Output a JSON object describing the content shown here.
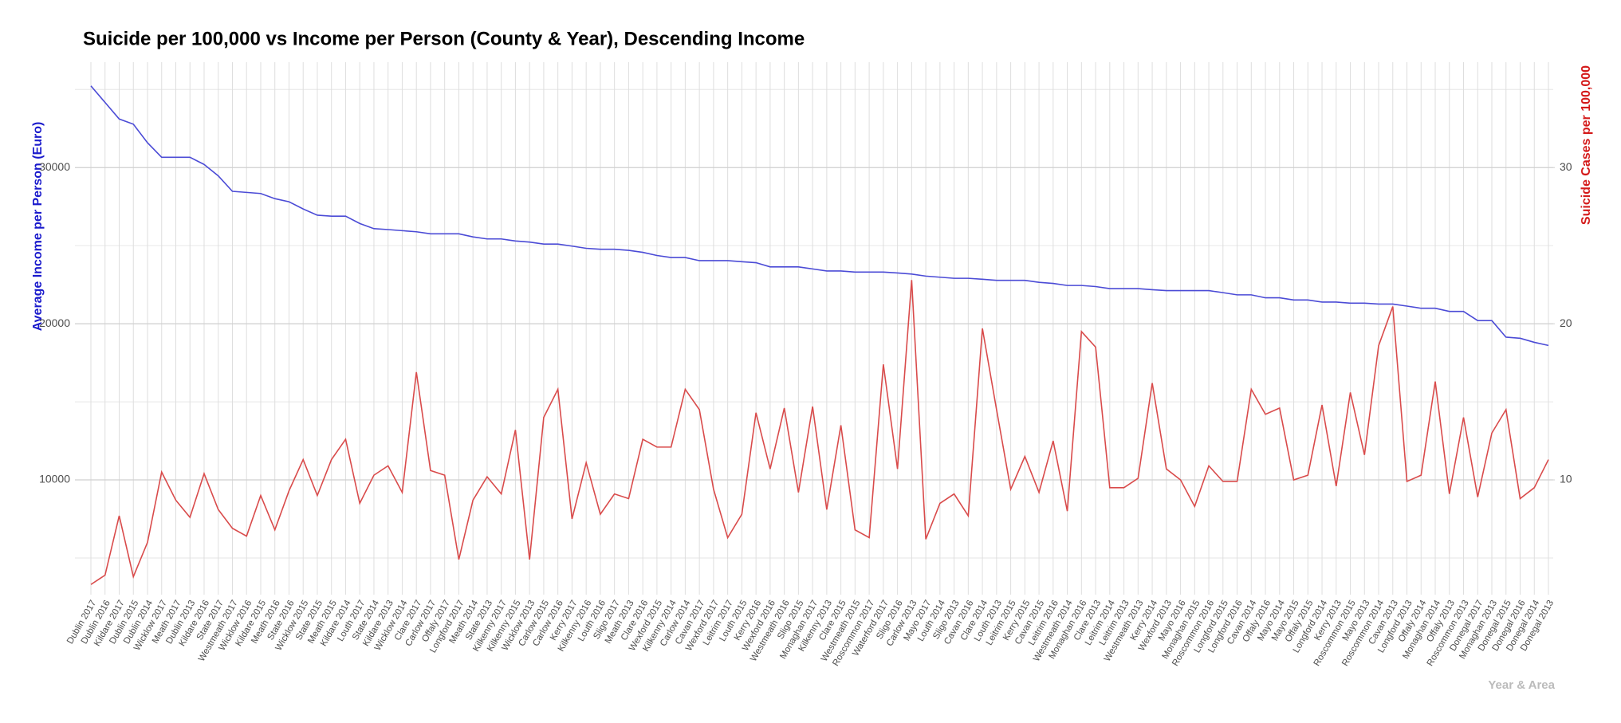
{
  "chart_data": {
    "type": "line",
    "title": "Suicide per 100,000 vs Income per Person (County & Year), Descending Income",
    "ylabel": "Average Income per Person (Euro)",
    "y2label": "Suicide Cases per 100,000",
    "xlabel": "Year & Area",
    "categories": [
      "Dublin 2017",
      "Dublin 2016",
      "Kildare 2017",
      "Dublin 2015",
      "Dublin 2014",
      "Wicklow 2017",
      "Meath 2017",
      "Dublin 2013",
      "Kildare 2016",
      "State 2017",
      "Westmeath 2017",
      "Wicklow 2016",
      "Kildare 2015",
      "Meath 2016",
      "State 2016",
      "Wicklow 2015",
      "State 2015",
      "Meath 2015",
      "Kildare 2014",
      "Louth 2017",
      "State 2014",
      "Kildare 2013",
      "Wicklow 2014",
      "Clare 2017",
      "Carlow 2017",
      "Offaly 2017",
      "Longford 2017",
      "Meath 2014",
      "State 2013",
      "Kilkenny 2017",
      "Kilkenny 2015",
      "Wicklow 2013",
      "Carlow 2015",
      "Carlow 2016",
      "Kerry 2017",
      "Kilkenny 2016",
      "Louth 2016",
      "Sligo 2017",
      "Meath 2013",
      "Clare 2016",
      "Wexford 2015",
      "Kilkenny 2014",
      "Carlow 2014",
      "Cavan 2017",
      "Wexford 2017",
      "Leitrim 2017",
      "Louth 2015",
      "Kerry 2016",
      "Wexford 2016",
      "Westmeath 2016",
      "Sligo 2015",
      "Monaghan 2017",
      "Kilkenny 2013",
      "Clare 2015",
      "Westmeath 2015",
      "Roscommon 2017",
      "Waterford 2017",
      "Sligo 2016",
      "Carlow 2013",
      "Mayo 2017",
      "Louth 2014",
      "Sligo 2013",
      "Cavan 2016",
      "Clare 2014",
      "Louth 2013",
      "Leitrim 2015",
      "Kerry 2015",
      "Cavan 2015",
      "Leitrim 2016",
      "Westmeath 2014",
      "Monaghan 2016",
      "Clare 2013",
      "Leitrim 2014",
      "Leitrim 2013",
      "Westmeath 2013",
      "Kerry 2014",
      "Wexford 2013",
      "Mayo 2016",
      "Monaghan 2015",
      "Roscommon 2016",
      "Longford 2015",
      "Longford 2016",
      "Cavan 2014",
      "Offaly 2016",
      "Mayo 2014",
      "Mayo 2015",
      "Offaly 2015",
      "Longford 2014",
      "Kerry 2013",
      "Roscommon 2015",
      "Mayo 2013",
      "Roscommon 2014",
      "Cavan 2013",
      "Longford 2013",
      "Offaly 2014",
      "Monaghan 2014",
      "Offaly 2013",
      "Roscommon 2013",
      "Donegal 2017",
      "Monaghan 2013",
      "Donegal 2015",
      "Donegal 2016",
      "Donegal 2014",
      "Donegal 2013"
    ],
    "series": [
      {
        "name": "Average Income per Person (Euro)",
        "color": "#4b4bd6",
        "values": [
          35230,
          34170,
          33110,
          32780,
          31590,
          30660,
          30660,
          30660,
          30200,
          29470,
          28480,
          28410,
          28340,
          28010,
          27810,
          27350,
          26950,
          26890,
          26890,
          26420,
          26090,
          26030,
          25960,
          25890,
          25760,
          25760,
          25760,
          25560,
          25430,
          25430,
          25300,
          25230,
          25100,
          25100,
          24970,
          24830,
          24770,
          24770,
          24700,
          24570,
          24370,
          24240,
          24240,
          24040,
          24040,
          24040,
          23970,
          23910,
          23640,
          23640,
          23640,
          23510,
          23380,
          23380,
          23310,
          23310,
          23310,
          23250,
          23180,
          23050,
          22980,
          22910,
          22910,
          22850,
          22780,
          22780,
          22780,
          22650,
          22580,
          22450,
          22450,
          22380,
          22250,
          22250,
          22250,
          22180,
          22120,
          22120,
          22120,
          22120,
          21990,
          21850,
          21850,
          21660,
          21660,
          21520,
          21520,
          21390,
          21390,
          21320,
          21320,
          21260,
          21260,
          21130,
          20990,
          20990,
          20790,
          20790,
          20200,
          20200,
          19140,
          19070,
          18810,
          18610
        ]
      },
      {
        "name": "Suicide Cases per 100,000",
        "color": "#d94b4b",
        "axis": "y2",
        "values": [
          3.3,
          3.9,
          7.7,
          3.8,
          6.0,
          10.5,
          8.7,
          7.6,
          10.4,
          8.1,
          6.9,
          6.4,
          9.0,
          6.8,
          9.3,
          11.3,
          9.0,
          11.3,
          12.6,
          8.5,
          10.3,
          10.9,
          9.2,
          16.9,
          10.6,
          10.3,
          4.9,
          8.7,
          10.2,
          9.1,
          13.2,
          4.9,
          14.0,
          15.8,
          7.5,
          11.1,
          7.8,
          9.1,
          8.8,
          12.6,
          12.1,
          12.1,
          15.8,
          14.5,
          9.4,
          6.3,
          7.8,
          14.3,
          10.7,
          14.6,
          9.2,
          14.7,
          8.1,
          13.5,
          6.8,
          6.3,
          17.4,
          10.7,
          22.8,
          6.2,
          8.5,
          9.1,
          7.7,
          19.7,
          14.5,
          9.4,
          11.5,
          9.2,
          12.5,
          8.0,
          19.5,
          18.5,
          9.5,
          9.5,
          10.1,
          16.2,
          10.7,
          10.0,
          8.3,
          10.9,
          9.9,
          9.9,
          15.8,
          14.2,
          14.6,
          10.0,
          10.3,
          14.8,
          9.6,
          15.6,
          11.6,
          18.6,
          21.1,
          9.9,
          10.3,
          16.3,
          9.1,
          14.0,
          8.9,
          13.0,
          14.5,
          8.8,
          9.5,
          11.3
        ]
      }
    ],
    "ylim": [
      2650,
      36750
    ],
    "yticks": [
      10000,
      20000,
      30000
    ],
    "y2lim": [
      2.65,
      36.75
    ],
    "y2ticks": [
      10,
      20,
      30
    ],
    "grid": true
  }
}
